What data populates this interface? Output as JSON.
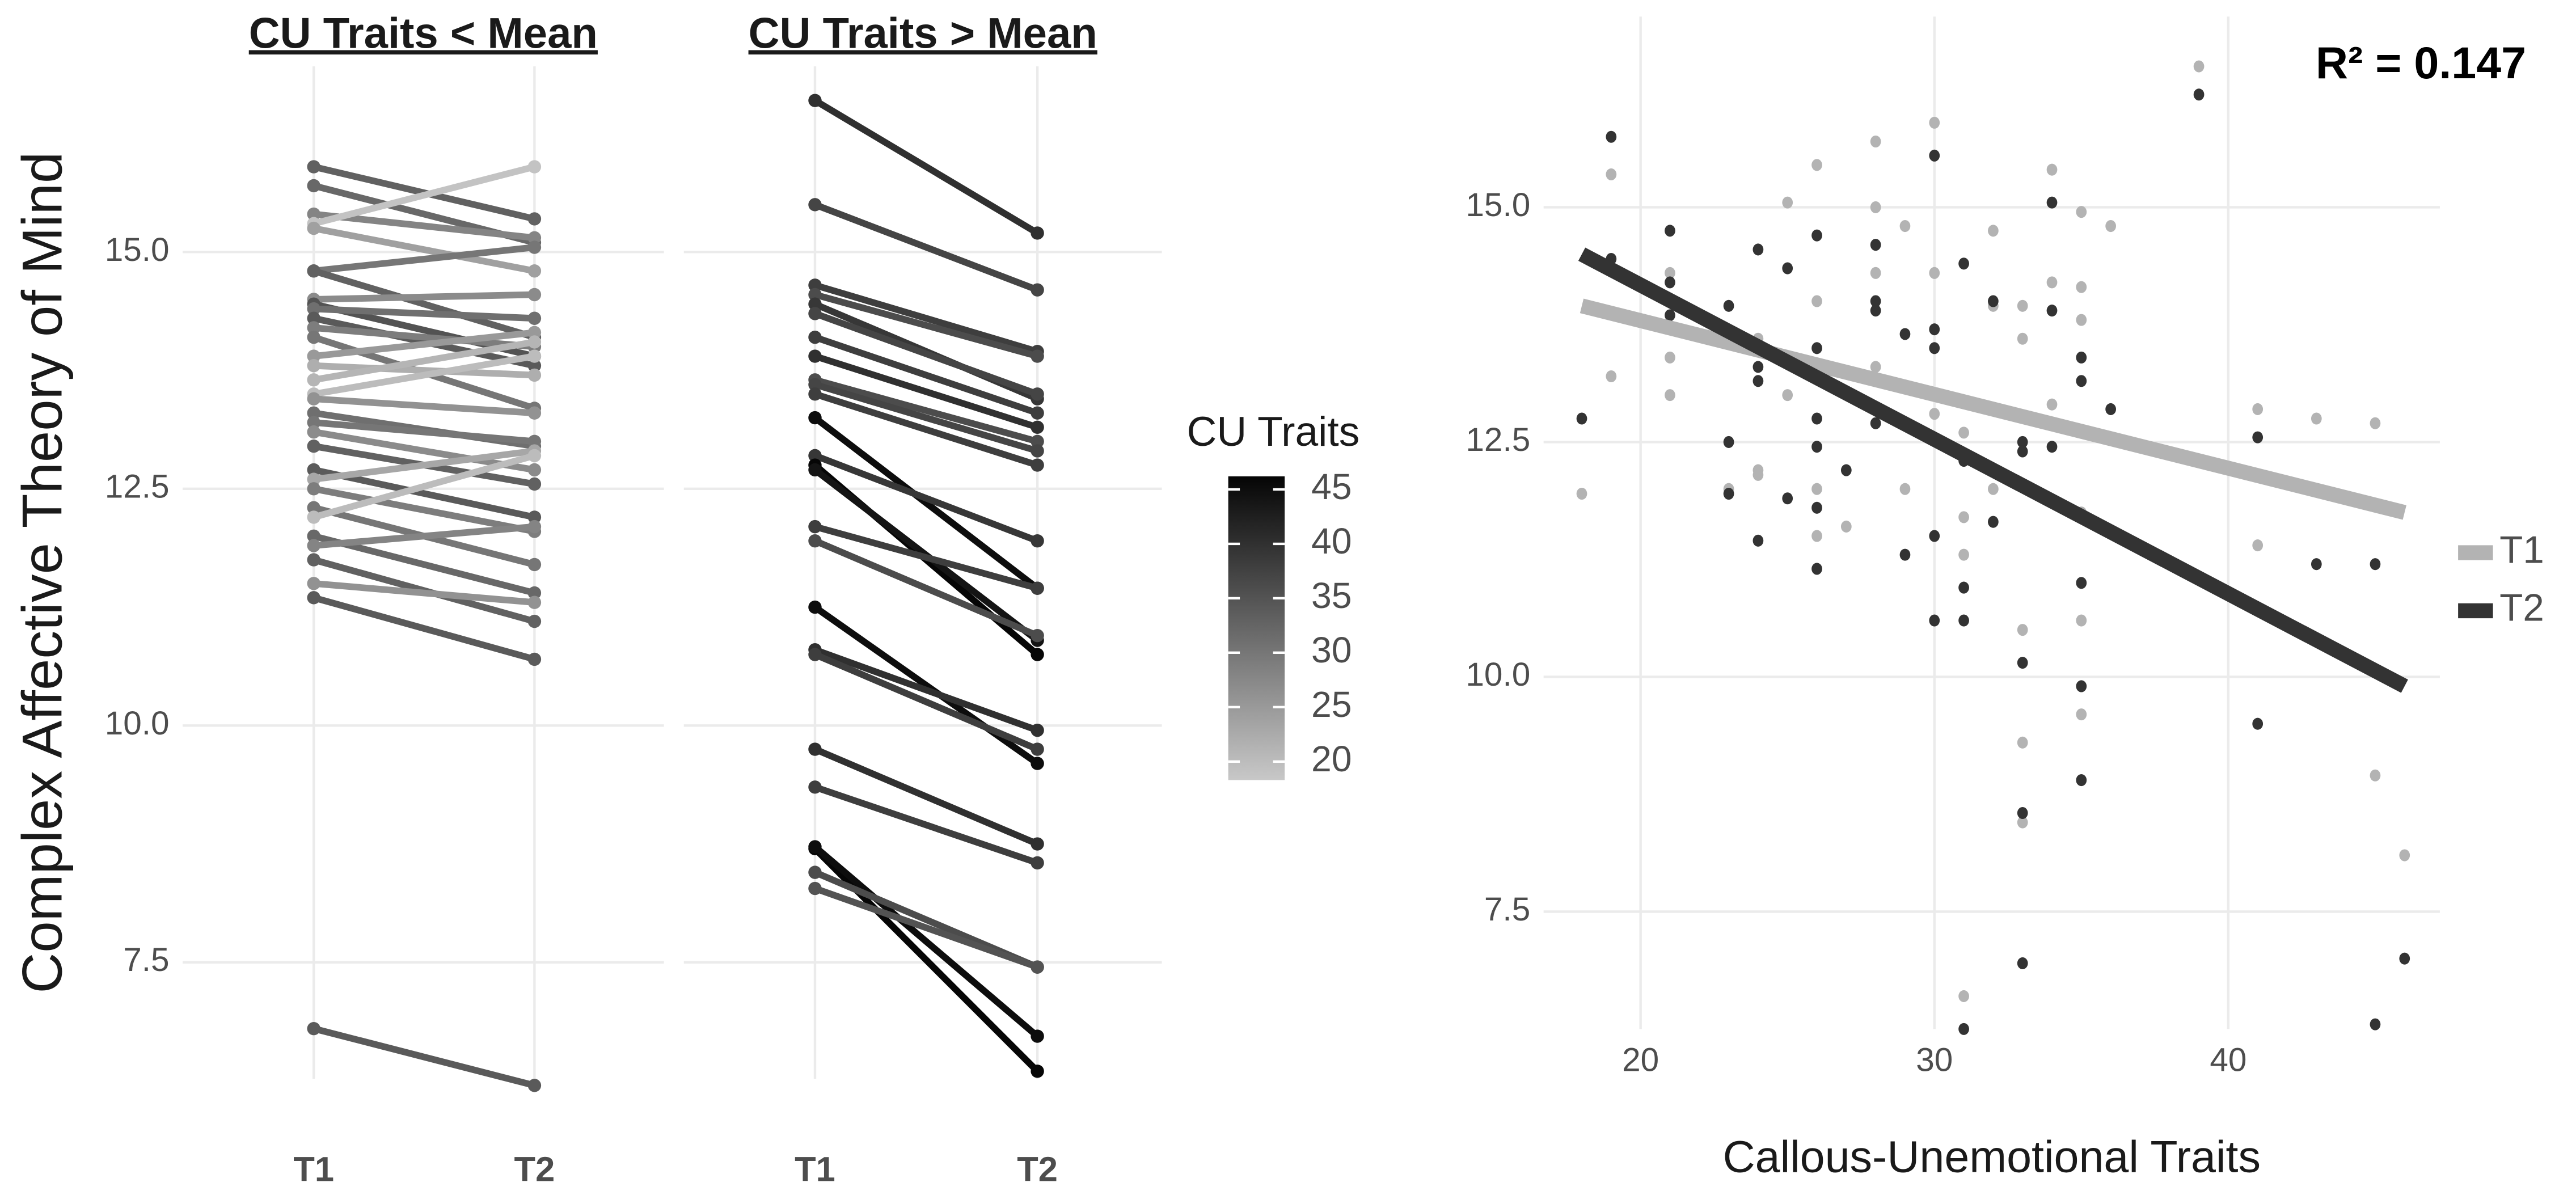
{
  "chart_data": [
    {
      "type": "slope",
      "title": "CU Traits < Mean",
      "ylabel": "Complex Affective Theory of Mind",
      "categories": [
        "T1",
        "T2"
      ],
      "ylim": [
        6.27,
        16.96
      ],
      "yticks": [
        {
          "value": 7.5,
          "label": "7.5"
        },
        {
          "value": 10,
          "label": "10.0"
        },
        {
          "value": 12.5,
          "label": "12.5"
        },
        {
          "value": 15,
          "label": "15.0"
        }
      ],
      "lines": [
        {
          "values": [
            15.9,
            15.35
          ],
          "cu": 33
        },
        {
          "values": [
            15.7,
            15.1
          ],
          "cu": 32
        },
        {
          "values": [
            15.4,
            15.15
          ],
          "cu": 28
        },
        {
          "values": [
            15.3,
            15.9
          ],
          "cu": 19
        },
        {
          "values": [
            15.25,
            14.8
          ],
          "cu": 24
        },
        {
          "values": [
            14.8,
            15.05
          ],
          "cu": 30
        },
        {
          "values": [
            14.8,
            14.1
          ],
          "cu": 33
        },
        {
          "values": [
            14.5,
            14.55
          ],
          "cu": 27
        },
        {
          "values": [
            14.45,
            13.9
          ],
          "cu": 35
        },
        {
          "values": [
            14.4,
            14.3
          ],
          "cu": 31
        },
        {
          "values": [
            14.3,
            13.8
          ],
          "cu": 34
        },
        {
          "values": [
            14.2,
            14.0
          ],
          "cu": 29
        },
        {
          "values": [
            14.1,
            13.35
          ],
          "cu": 30
        },
        {
          "values": [
            13.9,
            14.15
          ],
          "cu": 25
        },
        {
          "values": [
            13.8,
            13.7
          ],
          "cu": 22
        },
        {
          "values": [
            13.65,
            14.05
          ],
          "cu": 21
        },
        {
          "values": [
            13.5,
            13.9
          ],
          "cu": 20
        },
        {
          "values": [
            13.45,
            13.3
          ],
          "cu": 26
        },
        {
          "values": [
            13.3,
            12.95
          ],
          "cu": 31
        },
        {
          "values": [
            13.2,
            13.0
          ],
          "cu": 30
        },
        {
          "values": [
            13.1,
            12.7
          ],
          "cu": 27
        },
        {
          "values": [
            12.95,
            12.55
          ],
          "cu": 33
        },
        {
          "values": [
            12.7,
            12.2
          ],
          "cu": 34
        },
        {
          "values": [
            12.6,
            12.9
          ],
          "cu": 23
        },
        {
          "values": [
            12.5,
            12.05
          ],
          "cu": 29
        },
        {
          "values": [
            12.3,
            11.7
          ],
          "cu": 30
        },
        {
          "values": [
            12.2,
            12.85
          ],
          "cu": 20
        },
        {
          "values": [
            12.0,
            11.4
          ],
          "cu": 32
        },
        {
          "values": [
            11.9,
            12.1
          ],
          "cu": 28
        },
        {
          "values": [
            11.75,
            11.1
          ],
          "cu": 33
        },
        {
          "values": [
            11.5,
            11.3
          ],
          "cu": 26
        },
        {
          "values": [
            11.35,
            10.7
          ],
          "cu": 34
        },
        {
          "values": [
            6.8,
            6.2
          ],
          "cu": 34
        }
      ]
    },
    {
      "type": "slope",
      "title": "CU Traits > Mean",
      "categories": [
        "T1",
        "T2"
      ],
      "ylim": [
        6.27,
        16.96
      ],
      "yticks": [
        7.5,
        10,
        12.5,
        15
      ],
      "ytick_labels": false,
      "colorbar": {
        "title": "CU Traits",
        "lim": [
          18.3,
          46.2
        ],
        "ticks": [
          20,
          25,
          30,
          35,
          40,
          45
        ],
        "colors": [
          "#c8c8c8",
          "#050505"
        ]
      },
      "lines": [
        {
          "values": [
            16.6,
            15.2
          ],
          "cu": 40
        },
        {
          "values": [
            15.5,
            14.6
          ],
          "cu": 37
        },
        {
          "values": [
            14.65,
            13.95
          ],
          "cu": 38
        },
        {
          "values": [
            14.55,
            13.9
          ],
          "cu": 36
        },
        {
          "values": [
            14.45,
            13.45
          ],
          "cu": 39
        },
        {
          "values": [
            14.35,
            13.5
          ],
          "cu": 37
        },
        {
          "values": [
            14.1,
            13.3
          ],
          "cu": 38
        },
        {
          "values": [
            13.9,
            13.15
          ],
          "cu": 40
        },
        {
          "values": [
            13.65,
            13.0
          ],
          "cu": 36
        },
        {
          "values": [
            13.6,
            12.9
          ],
          "cu": 37
        },
        {
          "values": [
            13.5,
            12.75
          ],
          "cu": 38
        },
        {
          "values": [
            13.25,
            11.45
          ],
          "cu": 45
        },
        {
          "values": [
            12.85,
            11.95
          ],
          "cu": 39
        },
        {
          "values": [
            12.75,
            10.75
          ],
          "cu": 46
        },
        {
          "values": [
            12.7,
            10.9
          ],
          "cu": 44
        },
        {
          "values": [
            12.1,
            11.45
          ],
          "cu": 38
        },
        {
          "values": [
            11.95,
            10.95
          ],
          "cu": 36
        },
        {
          "values": [
            11.25,
            9.6
          ],
          "cu": 45
        },
        {
          "values": [
            10.8,
            9.95
          ],
          "cu": 40
        },
        {
          "values": [
            10.75,
            9.75
          ],
          "cu": 38
        },
        {
          "values": [
            9.75,
            8.75
          ],
          "cu": 40
        },
        {
          "values": [
            9.35,
            8.55
          ],
          "cu": 38
        },
        {
          "values": [
            8.7,
            6.35
          ],
          "cu": 46
        },
        {
          "values": [
            8.72,
            6.72
          ],
          "cu": 45
        },
        {
          "values": [
            8.45,
            7.45
          ],
          "cu": 36
        },
        {
          "values": [
            8.28,
            7.45
          ],
          "cu": 35
        }
      ]
    },
    {
      "type": "scatter",
      "xlabel": "Callous-Unemotional Traits",
      "annotation": "R² = 0.147",
      "legend": "right",
      "xlim": [
        16.7,
        47.2
      ],
      "ylim": [
        6.25,
        17.03
      ],
      "xticks": [
        20,
        30,
        40
      ],
      "yticks": [
        {
          "value": 7.5,
          "label": "7.5"
        },
        {
          "value": 10,
          "label": "10.0"
        },
        {
          "value": 12.5,
          "label": "12.5"
        },
        {
          "value": 15,
          "label": "15.0"
        }
      ],
      "series": [
        {
          "name": "T1",
          "color": "#b3b3b3",
          "fit_x": [
            18,
            46
          ],
          "fit": [
            13.95,
            11.75
          ],
          "x": [
            18,
            19,
            19,
            21,
            21,
            21,
            23,
            23,
            24,
            24,
            24,
            25,
            25,
            26,
            26,
            26,
            26,
            27,
            28,
            28,
            28,
            28,
            28,
            29,
            29,
            30,
            30,
            30,
            30,
            31,
            31,
            31,
            31,
            32,
            32,
            32,
            33,
            33,
            33,
            33,
            33,
            34,
            34,
            34,
            35,
            35,
            35,
            35,
            35,
            35,
            36,
            39,
            41,
            41,
            43,
            45,
            45,
            46
          ],
          "values": [
            11.95,
            15.35,
            13.2,
            14.3,
            13.0,
            13.4,
            13.55,
            12.0,
            12.2,
            13.6,
            12.15,
            15.05,
            13.0,
            15.45,
            14.0,
            12.0,
            11.5,
            11.6,
            15.7,
            15.0,
            14.3,
            13.3,
            12.85,
            14.8,
            12.0,
            15.9,
            14.3,
            13.0,
            12.8,
            12.6,
            11.7,
            11.3,
            6.6,
            14.75,
            13.95,
            12.0,
            13.95,
            13.6,
            10.5,
            9.3,
            8.45,
            15.4,
            14.2,
            12.9,
            14.95,
            14.15,
            13.8,
            11.75,
            10.6,
            9.6,
            14.8,
            16.5,
            12.85,
            11.4,
            12.75,
            12.7,
            8.95,
            8.1
          ]
        },
        {
          "name": "T2",
          "color": "#333333",
          "fit_x": [
            18,
            46
          ],
          "fit": [
            14.5,
            9.9
          ],
          "x": [
            18,
            19,
            19,
            21,
            21,
            21,
            23,
            23,
            23,
            24,
            24,
            24,
            24,
            25,
            25,
            26,
            26,
            26,
            26,
            26,
            26,
            27,
            28,
            28,
            28,
            28,
            29,
            29,
            30,
            30,
            30,
            30,
            30,
            31,
            31,
            31,
            31,
            31,
            32,
            32,
            33,
            33,
            33,
            33,
            33,
            34,
            34,
            34,
            35,
            35,
            35,
            35,
            35,
            36,
            39,
            41,
            41,
            43,
            45,
            45,
            46
          ],
          "values": [
            12.75,
            15.75,
            14.45,
            14.75,
            14.2,
            13.85,
            13.95,
            12.5,
            11.95,
            14.55,
            13.3,
            13.15,
            11.45,
            14.35,
            11.9,
            14.7,
            13.5,
            12.75,
            12.45,
            11.8,
            11.15,
            12.2,
            14.6,
            14.0,
            13.9,
            12.7,
            13.65,
            11.3,
            15.55,
            13.7,
            13.5,
            11.5,
            10.6,
            14.4,
            12.3,
            10.95,
            10.6,
            6.25,
            14.0,
            11.65,
            12.5,
            12.4,
            10.15,
            8.55,
            6.95,
            15.05,
            13.9,
            12.45,
            13.4,
            13.15,
            11.0,
            9.9,
            8.9,
            12.85,
            16.2,
            12.55,
            9.5,
            11.2,
            11.2,
            6.3,
            7.0
          ]
        }
      ]
    }
  ]
}
